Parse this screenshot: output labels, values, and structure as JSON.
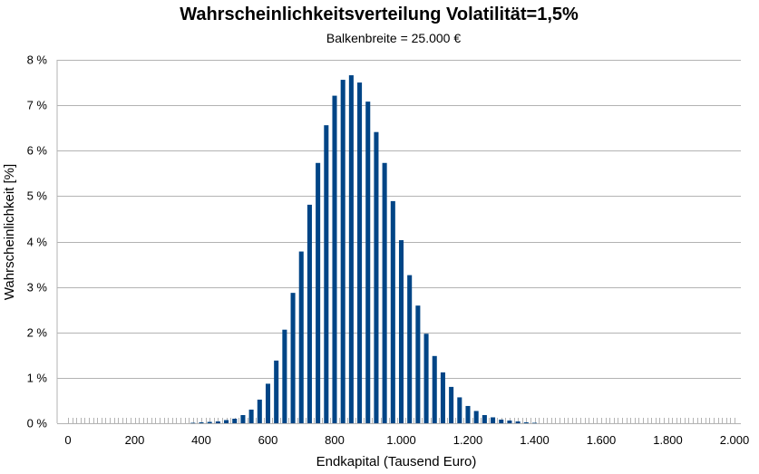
{
  "chart_data": {
    "type": "bar",
    "title": "Wahrscheinlichkeitsverteilung Volatilität=1,5%",
    "subtitle": "Balkenbreite = 25.000 €",
    "xlabel": "Endkapital (Tausend Euro)",
    "ylabel": "Wahrscheinlichkeit [%]",
    "xlim": [
      0,
      2000
    ],
    "ylim": [
      0,
      8
    ],
    "bin_width": 25,
    "x_ticks": [
      {
        "value": 0,
        "label": "0"
      },
      {
        "value": 200,
        "label": "200"
      },
      {
        "value": 400,
        "label": "400"
      },
      {
        "value": 600,
        "label": "600"
      },
      {
        "value": 800,
        "label": "800"
      },
      {
        "value": 1000,
        "label": "1.000"
      },
      {
        "value": 1200,
        "label": "1.200"
      },
      {
        "value": 1400,
        "label": "1.400"
      },
      {
        "value": 1600,
        "label": "1.600"
      },
      {
        "value": 1800,
        "label": "1.800"
      },
      {
        "value": 2000,
        "label": "2.000"
      }
    ],
    "y_ticks": [
      {
        "value": 0,
        "label": "0 %"
      },
      {
        "value": 1,
        "label": "1 %"
      },
      {
        "value": 2,
        "label": "2 %"
      },
      {
        "value": 3,
        "label": "3 %"
      },
      {
        "value": 4,
        "label": "4 %"
      },
      {
        "value": 5,
        "label": "5 %"
      },
      {
        "value": 6,
        "label": "6 %"
      },
      {
        "value": 7,
        "label": "7 %"
      },
      {
        "value": 8,
        "label": "8 %"
      }
    ],
    "x": [
      375,
      400,
      425,
      450,
      475,
      500,
      525,
      550,
      575,
      600,
      625,
      650,
      675,
      700,
      725,
      750,
      775,
      800,
      825,
      850,
      875,
      900,
      925,
      950,
      975,
      1000,
      1025,
      1050,
      1075,
      1100,
      1125,
      1150,
      1175,
      1200,
      1225,
      1250,
      1275,
      1300,
      1325,
      1350,
      1375,
      1400
    ],
    "values": [
      0.01,
      0.02,
      0.03,
      0.04,
      0.07,
      0.1,
      0.18,
      0.3,
      0.52,
      0.87,
      1.38,
      2.06,
      2.87,
      3.78,
      4.81,
      5.73,
      6.56,
      7.21,
      7.56,
      7.66,
      7.5,
      7.08,
      6.41,
      5.73,
      4.89,
      4.03,
      3.26,
      2.59,
      1.97,
      1.48,
      1.12,
      0.8,
      0.57,
      0.38,
      0.27,
      0.18,
      0.13,
      0.08,
      0.06,
      0.04,
      0.02,
      0.01
    ],
    "bar_color": "#004586",
    "grid": true,
    "legend": "none"
  }
}
